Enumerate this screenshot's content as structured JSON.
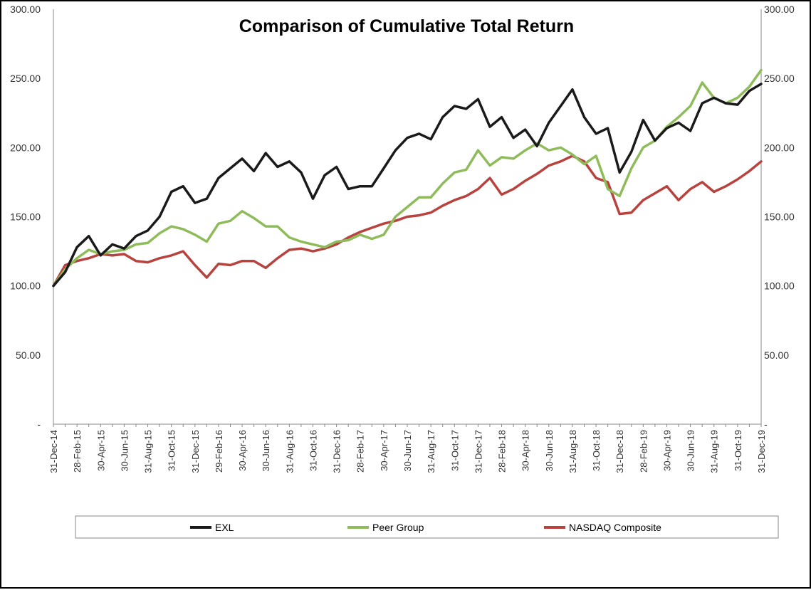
{
  "chart_data": {
    "type": "line",
    "title": "Comparison of Cumulative Total Return",
    "xlabel": "",
    "ylabel": "",
    "ylim": [
      0,
      300
    ],
    "y_ticks": [
      0,
      50,
      100,
      150,
      200,
      250,
      300
    ],
    "y_tick_labels": [
      "-",
      "50.00",
      "100.00",
      "150.00",
      "200.00",
      "250.00",
      "300.00"
    ],
    "secondary_y_axis": true,
    "grid": false,
    "legend_position": "bottom",
    "x_tick_labels": [
      "31-Dec-14",
      "28-Feb-15",
      "30-Apr-15",
      "30-Jun-15",
      "31-Aug-15",
      "31-Oct-15",
      "31-Dec-15",
      "29-Feb-16",
      "30-Apr-16",
      "30-Jun-16",
      "31-Aug-16",
      "31-Oct-16",
      "31-Dec-16",
      "28-Feb-17",
      "30-Apr-17",
      "30-Jun-17",
      "31-Aug-17",
      "31-Oct-17",
      "31-Dec-17",
      "28-Feb-18",
      "30-Apr-18",
      "30-Jun-18",
      "31-Aug-18",
      "31-Oct-18",
      "31-Dec-18",
      "28-Feb-19",
      "30-Apr-19",
      "30-Jun-19",
      "31-Aug-19",
      "31-Oct-19",
      "31-Dec-19"
    ],
    "x": [
      "31-Dec-14",
      "31-Jan-15",
      "28-Feb-15",
      "31-Mar-15",
      "30-Apr-15",
      "31-May-15",
      "30-Jun-15",
      "31-Jul-15",
      "31-Aug-15",
      "30-Sep-15",
      "31-Oct-15",
      "30-Nov-15",
      "31-Dec-15",
      "31-Jan-16",
      "29-Feb-16",
      "31-Mar-16",
      "30-Apr-16",
      "31-May-16",
      "30-Jun-16",
      "31-Jul-16",
      "31-Aug-16",
      "30-Sep-16",
      "31-Oct-16",
      "30-Nov-16",
      "31-Dec-16",
      "31-Jan-17",
      "28-Feb-17",
      "31-Mar-17",
      "30-Apr-17",
      "31-May-17",
      "30-Jun-17",
      "31-Jul-17",
      "31-Aug-17",
      "30-Sep-17",
      "31-Oct-17",
      "30-Nov-17",
      "31-Dec-17",
      "31-Jan-18",
      "28-Feb-18",
      "31-Mar-18",
      "30-Apr-18",
      "31-May-18",
      "30-Jun-18",
      "31-Jul-18",
      "31-Aug-18",
      "30-Sep-18",
      "31-Oct-18",
      "30-Nov-18",
      "31-Dec-18",
      "31-Jan-19",
      "28-Feb-19",
      "31-Mar-19",
      "30-Apr-19",
      "31-May-19",
      "30-Jun-19",
      "31-Jul-19",
      "31-Aug-19",
      "30-Sep-19",
      "31-Oct-19",
      "30-Nov-19",
      "31-Dec-19"
    ],
    "series": [
      {
        "name": "EXL",
        "color": "#1a1a1a",
        "values": [
          100,
          110,
          128,
          136,
          122,
          130,
          127,
          136,
          140,
          150,
          168,
          172,
          160,
          163,
          178,
          185,
          192,
          183,
          196,
          186,
          190,
          182,
          163,
          180,
          186,
          170,
          172,
          172,
          185,
          198,
          207,
          210,
          206,
          222,
          230,
          228,
          235,
          215,
          222,
          207,
          213,
          201,
          218,
          230,
          242,
          222,
          210,
          214,
          182,
          197,
          220,
          205,
          214,
          218,
          212,
          232,
          236,
          232,
          231,
          241,
          246
        ]
      },
      {
        "name": "Peer Group",
        "color": "#8fbc5a",
        "values": [
          100,
          112,
          120,
          126,
          123,
          125,
          126,
          130,
          131,
          138,
          143,
          141,
          137,
          132,
          145,
          147,
          154,
          149,
          143,
          143,
          135,
          132,
          130,
          128,
          132,
          133,
          137,
          134,
          137,
          150,
          157,
          164,
          164,
          174,
          182,
          184,
          198,
          187,
          193,
          192,
          198,
          203,
          198,
          200,
          195,
          188,
          194,
          170,
          165,
          185,
          200,
          205,
          215,
          222,
          230,
          247,
          236,
          232,
          236,
          244,
          256
        ]
      },
      {
        "name": "NASDAQ Composite",
        "color": "#b8433e",
        "values": [
          100,
          115,
          118,
          120,
          123,
          122,
          123,
          118,
          117,
          120,
          122,
          125,
          115,
          106,
          116,
          115,
          118,
          118,
          113,
          120,
          126,
          127,
          125,
          127,
          130,
          135,
          139,
          142,
          145,
          147,
          150,
          151,
          153,
          158,
          162,
          165,
          170,
          178,
          166,
          170,
          176,
          181,
          187,
          190,
          194,
          190,
          178,
          175,
          152,
          153,
          162,
          167,
          172,
          162,
          170,
          175,
          168,
          172,
          177,
          183,
          190
        ]
      }
    ]
  }
}
